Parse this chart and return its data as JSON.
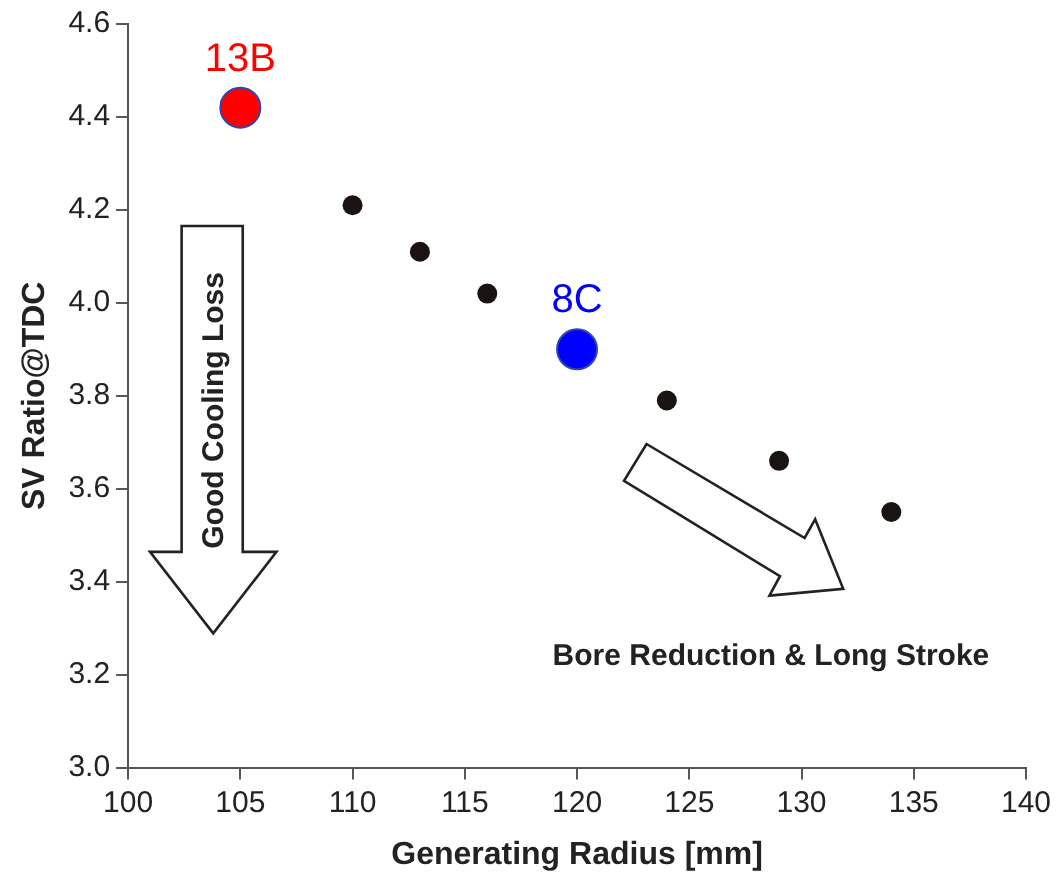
{
  "chart_data": {
    "type": "scatter",
    "xlabel": "Generating Radius [mm]",
    "ylabel": "SV Ratio@TDC",
    "xlim": [
      100,
      140
    ],
    "xticks": [
      100,
      105,
      110,
      115,
      120,
      125,
      130,
      135,
      140
    ],
    "ylim": [
      3.0,
      4.6
    ],
    "yticks": [
      {
        "value": 3,
        "label": "3.0"
      },
      3.2,
      3.4,
      3.6,
      3.8,
      {
        "value": 4,
        "label": "4.0"
      },
      4.2,
      4.4,
      4.6
    ],
    "grid": false,
    "legend": false,
    "marker": "circle",
    "series": [
      {
        "color": "#1a1311",
        "x": [
          110,
          113,
          116,
          124,
          129,
          134
        ],
        "values": [
          4.21,
          4.11,
          4.02,
          3.79,
          3.66,
          3.55
        ]
      },
      {
        "name": "13B",
        "color": "#ff0000",
        "x": [
          105
        ],
        "values": [
          4.42
        ]
      },
      {
        "name": "8C",
        "color": "#0000ff",
        "x": [
          120
        ],
        "values": [
          3.9
        ]
      }
    ],
    "annotations": [
      "Good Cooling Loss",
      "Bore Reduction & Long Stroke"
    ]
  }
}
